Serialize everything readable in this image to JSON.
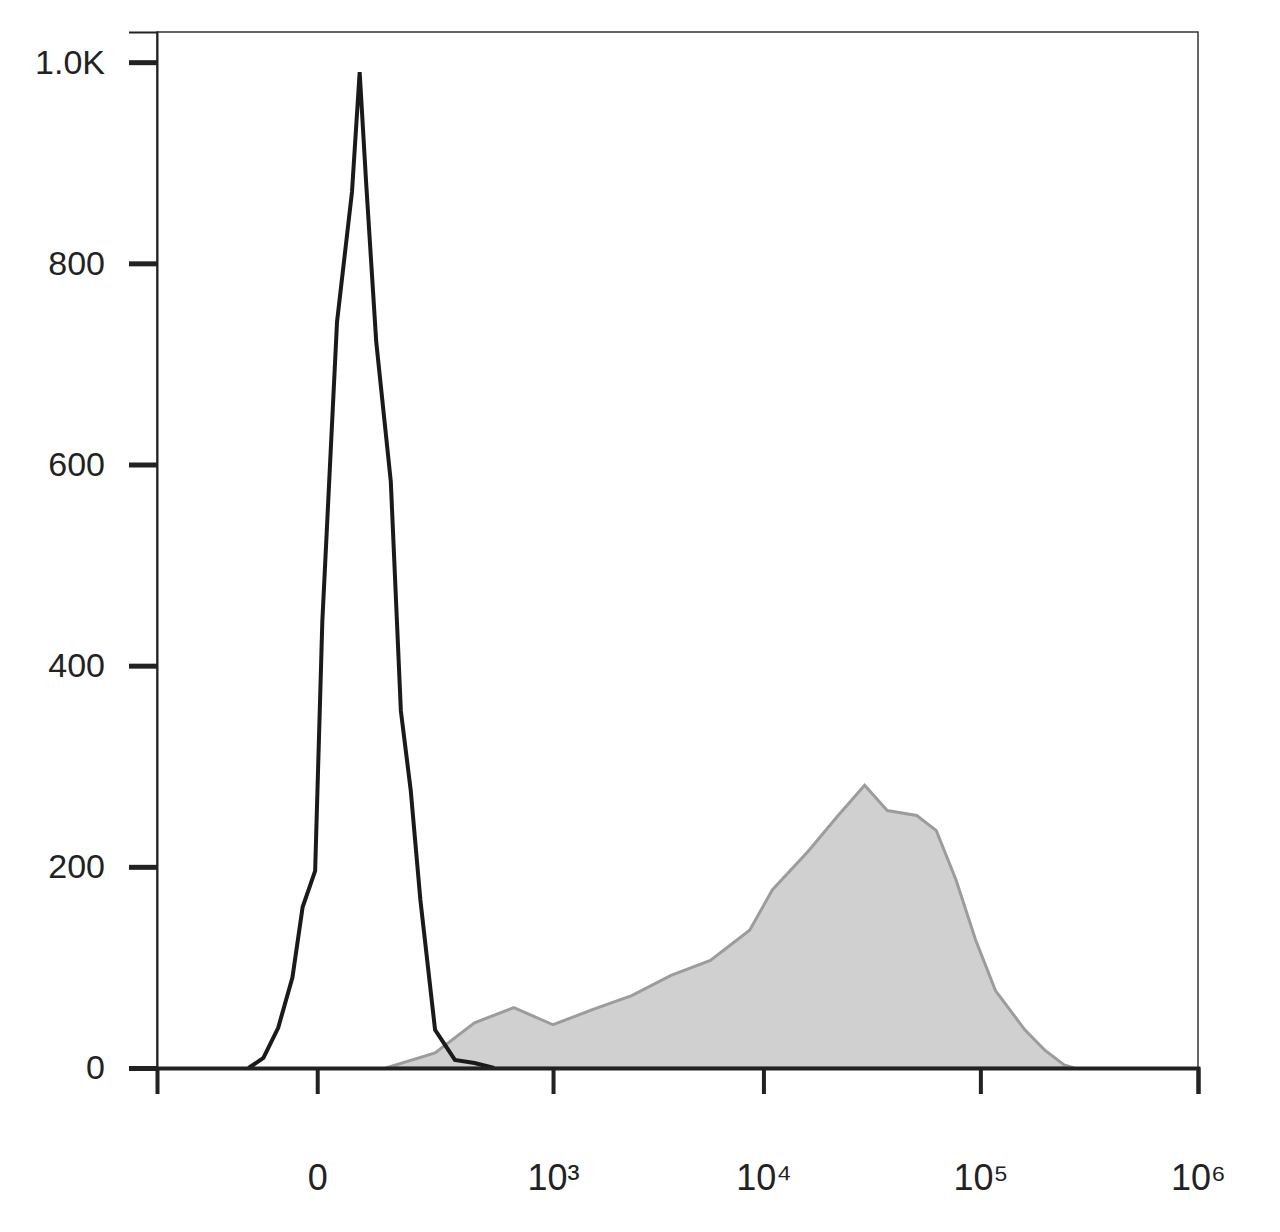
{
  "chart_data": {
    "type": "line",
    "log": "x",
    "xlim": [
      -400,
      1000000
    ],
    "xticks": [
      0,
      {
        "value": 1000,
        "label": "10³"
      },
      {
        "value": 10000,
        "label": "10⁴"
      },
      {
        "value": 100000,
        "label": "10⁵"
      },
      {
        "value": 1000000,
        "label": "10⁶"
      }
    ],
    "ylim": [
      0,
      1030
    ],
    "yticks": [
      0,
      200,
      400,
      600,
      800,
      {
        "value": 1000,
        "label": "1.0K"
      }
    ],
    "series": [
      {
        "type": "area",
        "color": "#d0d0d0",
        "x": [
          96,
          223,
          385,
          630,
          1000,
          1563,
          2415,
          3708,
          5666,
          8631,
          10990,
          16190,
          22140,
          29340,
          37290,
          50940,
          62730,
          77300,
          95200,
          117300,
          160100,
          197100,
          242600,
          269300
        ],
        "values": [
          0,
          15,
          45,
          60,
          43,
          58,
          72,
          92,
          107,
          137,
          177,
          216,
          251,
          281,
          256,
          251,
          236,
          187,
          127,
          77,
          38,
          18,
          3,
          0
        ]
      },
      {
        "type": "line",
        "color": "#1a1a1a",
        "x": [
          -96,
          -69,
          -46,
          -27,
          -15,
          -2,
          5,
          21,
          40,
          51,
          61,
          78,
          106,
          128,
          152,
          178,
          223,
          296,
          385,
          495
        ],
        "values": [
          0,
          10,
          40,
          90,
          160,
          196,
          444,
          742,
          871,
          990,
          880,
          722,
          583,
          355,
          276,
          167,
          38,
          8,
          5,
          0
        ]
      }
    ]
  }
}
